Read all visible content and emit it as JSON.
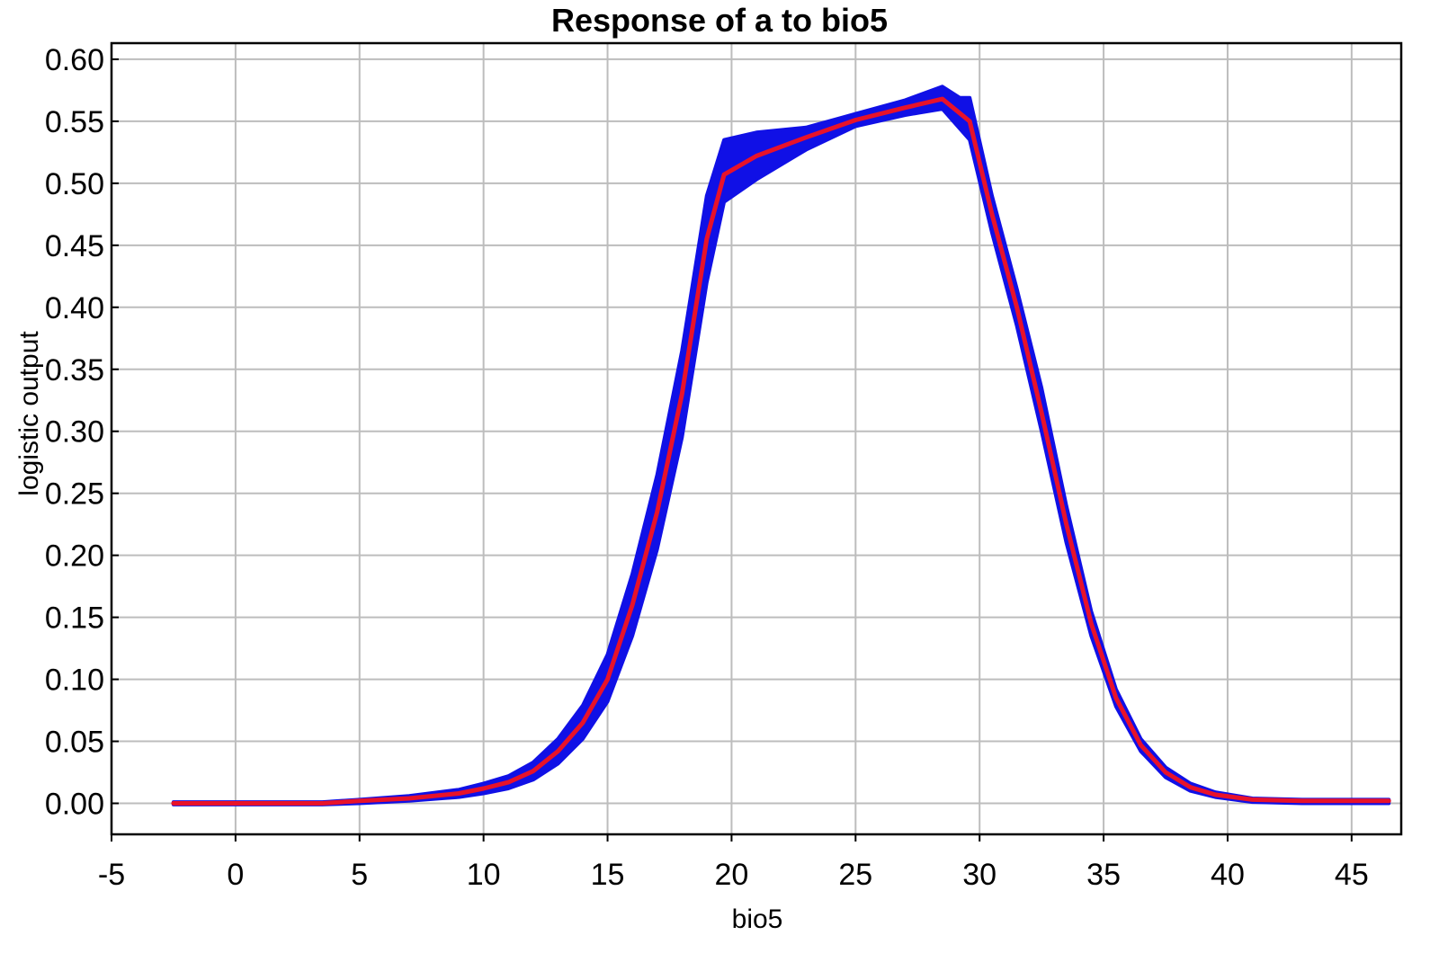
{
  "chart_data": {
    "type": "line",
    "title": "Response of a to bio5",
    "xlabel": "bio5",
    "ylabel": "logistic output",
    "xlim": [
      -5,
      47
    ],
    "ylim": [
      -0.025,
      0.613
    ],
    "x_ticks": [
      -5,
      0,
      5,
      10,
      15,
      20,
      25,
      30,
      35,
      40,
      45
    ],
    "y_ticks": [
      0.0,
      0.05,
      0.1,
      0.15,
      0.2,
      0.25,
      0.3,
      0.35,
      0.4,
      0.45,
      0.5,
      0.55,
      0.6
    ],
    "grid": true,
    "colors": {
      "band": "#1010e6",
      "mean": "#e8122a",
      "grid": "#bdbdbd",
      "axis": "#000000"
    },
    "series": [
      {
        "role": "mean",
        "x": [
          -2.5,
          0,
          3.5,
          5,
          7,
          9,
          10,
          11,
          12,
          13,
          14,
          15,
          16,
          17,
          18,
          19,
          19.7,
          21,
          23,
          25,
          27,
          28.5,
          29.6,
          30.5,
          31.5,
          32.5,
          33.5,
          34.5,
          35.5,
          36.5,
          37.5,
          38.5,
          39.5,
          41,
          43,
          46.5
        ],
        "y": [
          0.0,
          0.0,
          0.0,
          0.002,
          0.004,
          0.008,
          0.012,
          0.017,
          0.026,
          0.042,
          0.065,
          0.1,
          0.16,
          0.235,
          0.33,
          0.455,
          0.507,
          0.522,
          0.537,
          0.551,
          0.561,
          0.568,
          0.55,
          0.475,
          0.4,
          0.315,
          0.225,
          0.145,
          0.085,
          0.047,
          0.025,
          0.013,
          0.007,
          0.003,
          0.002,
          0.002
        ]
      },
      {
        "role": "upper",
        "x": [
          -2.5,
          0,
          3.5,
          5,
          7,
          9,
          10,
          11,
          12,
          13,
          14,
          15,
          16,
          17,
          18,
          19,
          19.7,
          21,
          23,
          25,
          27,
          28.5,
          29.2,
          29.6,
          30.5,
          31.5,
          32.5,
          33.5,
          34.5,
          35.5,
          36.5,
          37.5,
          38.5,
          39.5,
          41,
          43,
          46.5
        ],
        "y": [
          0.001,
          0.001,
          0.001,
          0.003,
          0.006,
          0.011,
          0.016,
          0.022,
          0.033,
          0.052,
          0.079,
          0.12,
          0.185,
          0.265,
          0.365,
          0.49,
          0.535,
          0.541,
          0.545,
          0.556,
          0.567,
          0.578,
          0.569,
          0.569,
          0.49,
          0.415,
          0.335,
          0.24,
          0.155,
          0.092,
          0.052,
          0.029,
          0.016,
          0.009,
          0.004,
          0.003,
          0.003
        ]
      },
      {
        "role": "lower",
        "x": [
          -2.5,
          0,
          3.5,
          5,
          7,
          9,
          10,
          11,
          12,
          13,
          14,
          15,
          16,
          17,
          18,
          19,
          19.7,
          21,
          23,
          25,
          27,
          28.5,
          29.6,
          30.5,
          31.5,
          32.5,
          33.5,
          34.5,
          35.5,
          36.5,
          37.5,
          38.5,
          39.5,
          41,
          43,
          46.5
        ],
        "y": [
          -0.001,
          -0.001,
          -0.001,
          0.0,
          0.002,
          0.005,
          0.008,
          0.012,
          0.019,
          0.032,
          0.052,
          0.082,
          0.135,
          0.205,
          0.295,
          0.42,
          0.485,
          0.503,
          0.527,
          0.546,
          0.555,
          0.56,
          0.535,
          0.46,
          0.385,
          0.3,
          0.21,
          0.135,
          0.078,
          0.042,
          0.021,
          0.01,
          0.005,
          0.001,
          0.0,
          0.0
        ]
      }
    ]
  }
}
